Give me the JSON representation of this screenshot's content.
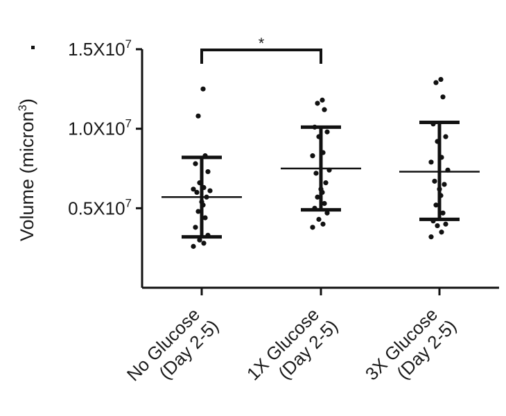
{
  "chart_data": {
    "type": "scatter",
    "ylabel_main": "Volume (micron",
    "ylabel_sup": "3",
    "ylabel_close": ")",
    "ylim": [
      0,
      15000000
    ],
    "yticks": [
      {
        "value": 5000000,
        "mantissa": "0.5X10",
        "exp": "7"
      },
      {
        "value": 10000000,
        "mantissa": "1.0X10",
        "exp": "7"
      },
      {
        "value": 15000000,
        "mantissa": "1.5X10",
        "exp": "7"
      }
    ],
    "categories": [
      {
        "line1": "No Glucose",
        "line2": "(Day 2-5)"
      },
      {
        "line1": "1X Glucose",
        "line2": "(Day 2-5)"
      },
      {
        "line1": "3X Glucose",
        "line2": "(Day 2-5)"
      }
    ],
    "series": [
      {
        "mean": 5700000,
        "sd_low": 3200000,
        "sd_high": 8200000,
        "points": [
          12500000,
          10800000,
          8300000,
          7800000,
          7300000,
          6600000,
          6300000,
          6200000,
          6100000,
          6000000,
          5700000,
          5400000,
          5200000,
          4800000,
          4400000,
          3800000,
          3300000,
          3000000,
          2800000,
          2600000
        ]
      },
      {
        "mean": 7500000,
        "sd_low": 4900000,
        "sd_high": 10100000,
        "points": [
          11800000,
          11600000,
          11200000,
          10100000,
          9800000,
          9500000,
          8500000,
          8300000,
          7400000,
          7200000,
          6600000,
          6200000,
          6000000,
          5700000,
          5300000,
          5000000,
          4700000,
          4300000,
          4000000,
          3800000
        ]
      },
      {
        "mean": 7300000,
        "sd_low": 4300000,
        "sd_high": 10400000,
        "points": [
          13100000,
          12900000,
          12000000,
          10300000,
          9500000,
          9200000,
          8200000,
          7900000,
          7400000,
          6700000,
          6500000,
          6200000,
          5800000,
          5200000,
          4700000,
          4200000,
          4000000,
          3900000,
          3500000,
          3200000
        ]
      }
    ],
    "significance": {
      "from": 0,
      "to": 1,
      "label": "*"
    }
  }
}
